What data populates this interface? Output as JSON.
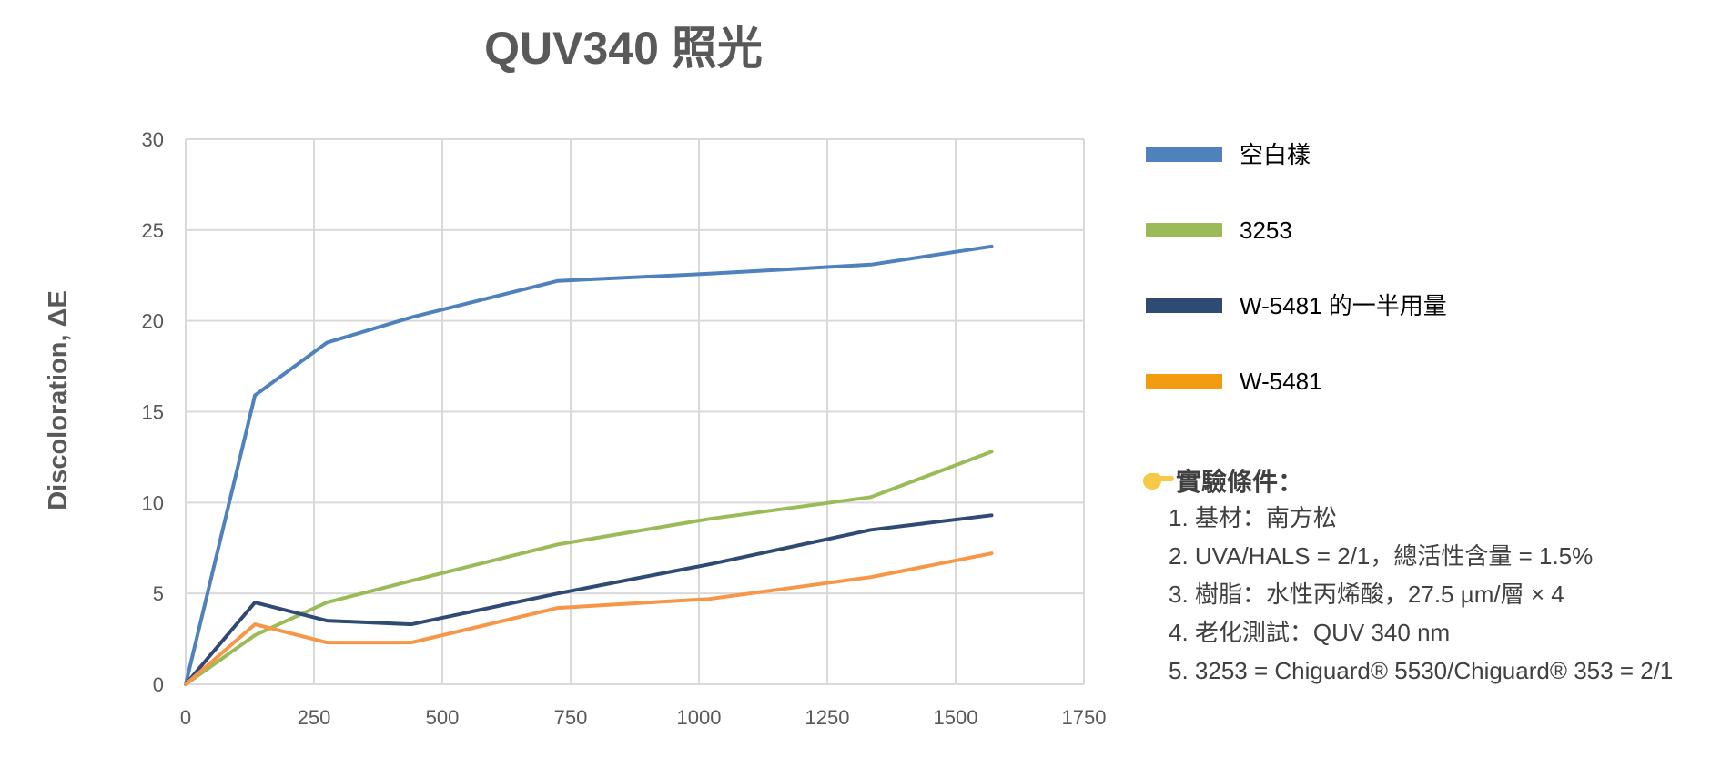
{
  "chart_data": {
    "type": "line",
    "title": "QUV340  照光",
    "xlabel": "",
    "ylabel": "Discoloration, ΔE",
    "xlim": [
      0,
      1750
    ],
    "ylim": [
      0,
      30
    ],
    "xticks": [
      0,
      250,
      500,
      750,
      1000,
      1250,
      1500,
      1750
    ],
    "yticks": [
      0,
      5,
      10,
      15,
      20,
      25,
      30
    ],
    "grid": true,
    "legend_position": "right",
    "series": [
      {
        "name": "空白樣",
        "color": "#4f81bd",
        "points": [
          [
            0,
            0
          ],
          [
            135,
            15.9
          ],
          [
            275,
            18.8
          ],
          [
            440,
            20.2
          ],
          [
            725,
            22.2
          ],
          [
            1020,
            22.6
          ],
          [
            1335,
            23.1
          ],
          [
            1570,
            24.1
          ]
        ]
      },
      {
        "name": "3253",
        "color": "#9bbb59",
        "points": [
          [
            0,
            0
          ],
          [
            135,
            2.7
          ],
          [
            275,
            4.5
          ],
          [
            440,
            5.7
          ],
          [
            725,
            7.7
          ],
          [
            1020,
            9.1
          ],
          [
            1335,
            10.3
          ],
          [
            1570,
            12.8
          ]
        ]
      },
      {
        "name": "W-5481 的一半用量",
        "color": "#2f4b74",
        "points": [
          [
            0,
            0
          ],
          [
            135,
            4.5
          ],
          [
            275,
            3.5
          ],
          [
            440,
            3.3
          ],
          [
            725,
            5.0
          ],
          [
            1020,
            6.6
          ],
          [
            1335,
            8.5
          ],
          [
            1570,
            9.3
          ]
        ]
      },
      {
        "name": "W-5481",
        "color": "#f79646",
        "points": [
          [
            0,
            0
          ],
          [
            135,
            3.3
          ],
          [
            275,
            2.3
          ],
          [
            440,
            2.3
          ],
          [
            725,
            4.2
          ],
          [
            1020,
            4.7
          ],
          [
            1335,
            5.9
          ],
          [
            1570,
            7.2
          ]
        ]
      }
    ]
  },
  "notes": {
    "heading": "實驗條件：",
    "icon": "pointing-hand-icon",
    "items": [
      "1. 基材：南方松",
      "2. UVA/HALS = 2/1，總活性含量 = 1.5%",
      "3. 樹脂：水性丙烯酸，27.5 µm/層 × 4",
      "4. 老化測試：QUV 340 nm",
      "5. 3253 = Chiguard® 5530/Chiguard® 353 = 2/1"
    ]
  },
  "legend_swatch_colors": [
    "#4f81bd",
    "#9bbb59",
    "#2f4b74",
    "#f39c12"
  ]
}
